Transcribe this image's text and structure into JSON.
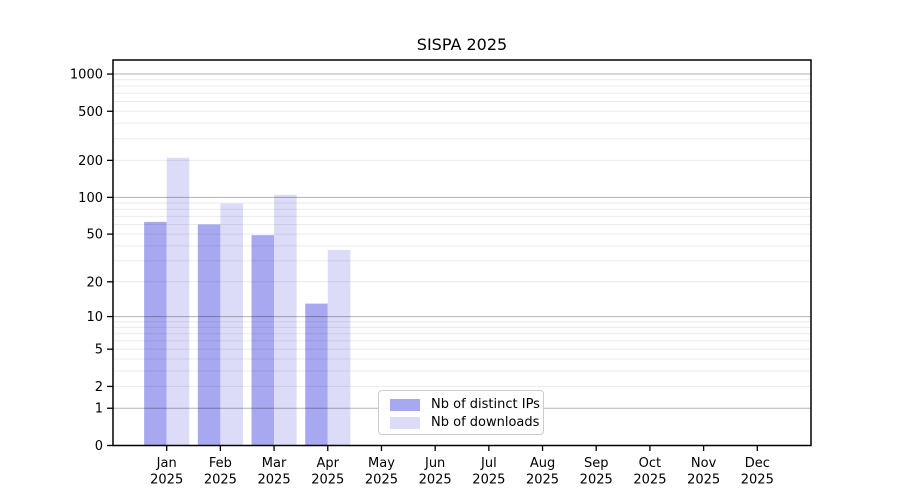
{
  "title": "SISPA 2025",
  "chart_data": {
    "type": "bar",
    "title": "SISPA 2025",
    "categories": [
      "Jan",
      "Feb",
      "Mar",
      "Apr",
      "May",
      "Jun",
      "Jul",
      "Aug",
      "Sep",
      "Oct",
      "Nov",
      "Dec"
    ],
    "category_sublabel": "2025",
    "series": [
      {
        "name": "Nb of distinct IPs",
        "color": "#a8a8f0",
        "values": [
          63,
          60,
          49,
          13,
          null,
          null,
          null,
          null,
          null,
          null,
          null,
          null
        ]
      },
      {
        "name": "Nb of downloads",
        "color": "#dcdcf8",
        "values": [
          210,
          89,
          105,
          37,
          null,
          null,
          null,
          null,
          null,
          null,
          null,
          null
        ]
      }
    ],
    "yscale": "log1p",
    "yticks": [
      0,
      1,
      2,
      5,
      10,
      20,
      50,
      100,
      200,
      500,
      1000
    ],
    "ygrid_major": [
      1,
      10,
      100,
      1000
    ],
    "ylim": [
      0,
      1300
    ],
    "xlabel": "",
    "ylabel": "",
    "grid": true,
    "legend_position": "bottom-center"
  },
  "colors": {
    "series_ips": "#a8a8f0",
    "series_downloads": "#dcdcf8",
    "grid_major": "rgba(0,0,0,0.30)",
    "grid_minor": "rgba(0,0,0,0.08)",
    "axis": "#000000",
    "text": "#000000",
    "legend_border": "#cccccc",
    "background": "#ffffff"
  }
}
